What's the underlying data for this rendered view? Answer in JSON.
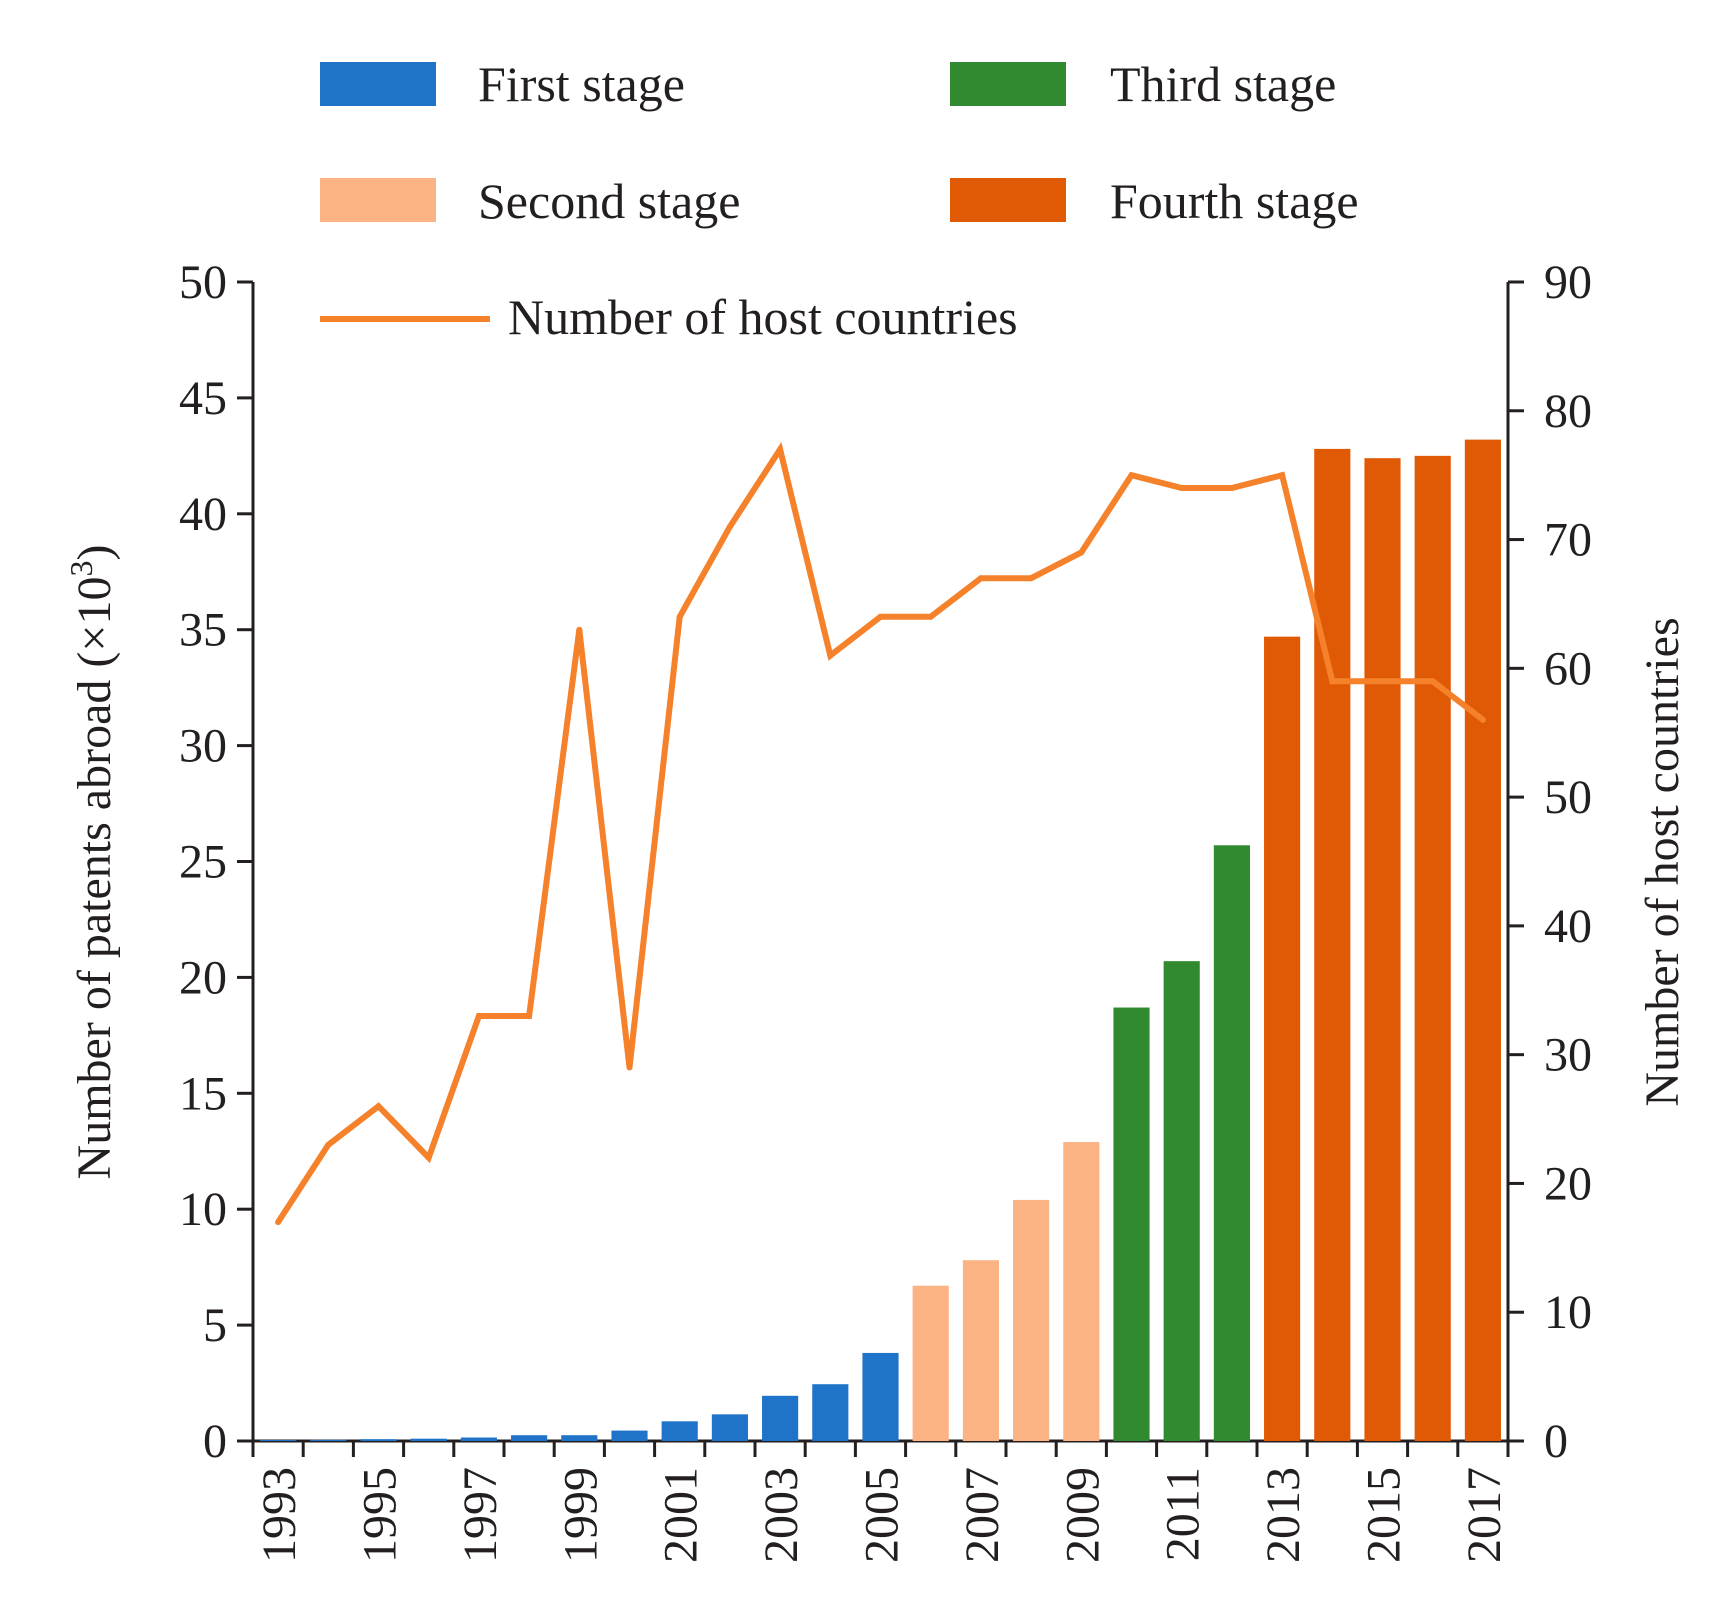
{
  "chart_data": {
    "type": "bar",
    "categories": [
      "1993",
      "1994",
      "1995",
      "1996",
      "1997",
      "1998",
      "1999",
      "2000",
      "2001",
      "2002",
      "2003",
      "2004",
      "2005",
      "2006",
      "2007",
      "2008",
      "2009",
      "2010",
      "2011",
      "2012",
      "2013",
      "2014",
      "2015",
      "2016",
      "2017"
    ],
    "x_tick_labels": [
      "1993",
      "1995",
      "1997",
      "1999",
      "2001",
      "2003",
      "2005",
      "2007",
      "2009",
      "2011",
      "2013",
      "2015",
      "2017"
    ],
    "series": [
      {
        "name": "Number of patents abroad",
        "axis": "left",
        "type": "bar",
        "values": [
          0.02,
          0.05,
          0.08,
          0.1,
          0.15,
          0.25,
          0.25,
          0.45,
          0.85,
          1.15,
          1.95,
          2.45,
          3.8,
          6.7,
          7.8,
          10.4,
          12.9,
          18.7,
          20.7,
          25.7,
          34.7,
          42.8,
          42.4,
          42.5,
          43.2
        ],
        "stage": [
          1,
          1,
          1,
          1,
          1,
          1,
          1,
          1,
          1,
          1,
          1,
          1,
          1,
          2,
          2,
          2,
          2,
          3,
          3,
          3,
          4,
          4,
          4,
          4,
          4
        ]
      },
      {
        "name": "Number of host countries",
        "axis": "right",
        "type": "line",
        "values": [
          17,
          23,
          26,
          22,
          33,
          33,
          63,
          29,
          64,
          71,
          77,
          61,
          64,
          64,
          67,
          67,
          69,
          75,
          74,
          74,
          75,
          59,
          59,
          59,
          56
        ]
      }
    ],
    "stages": [
      {
        "name": "First stage",
        "color": "#1f74c9"
      },
      {
        "name": "Second stage",
        "color": "#fbb384"
      },
      {
        "name": "Third stage",
        "color": "#318a30"
      },
      {
        "name": "Fourth stage",
        "color": "#e05a06"
      }
    ],
    "line_color": "#f5812b",
    "legend": {
      "first": "First stage",
      "second": "Second stage",
      "third": "Third stage",
      "fourth": "Fourth stage",
      "line": "Number of host countries"
    },
    "ylabel_left_main": "Number of patents abroad (×10",
    "ylabel_left_exp": "3",
    "ylabel_left_close": ")",
    "ylabel_right": "Number of host countries",
    "ylim_left": [
      0,
      50
    ],
    "ylim_right": [
      0,
      90
    ],
    "yticks_left": [
      "0",
      "5",
      "10",
      "15",
      "20",
      "25",
      "30",
      "35",
      "40",
      "45",
      "50"
    ],
    "yticks_right": [
      "0",
      "10",
      "20",
      "30",
      "40",
      "50",
      "60",
      "70",
      "80",
      "90"
    ],
    "legend_position": "top",
    "grid": false
  }
}
